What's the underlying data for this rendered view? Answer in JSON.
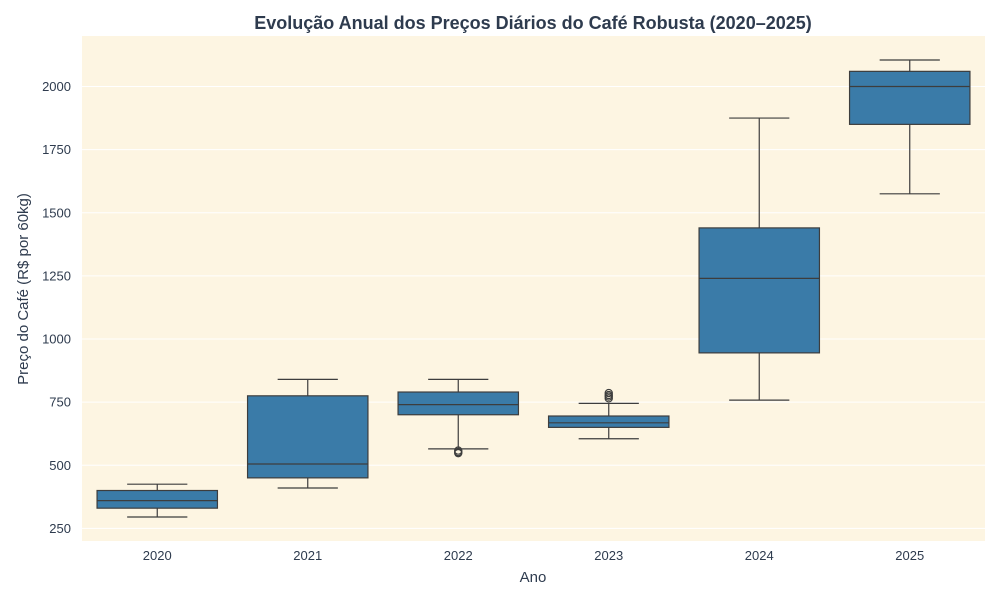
{
  "chart_data": {
    "type": "box",
    "title": "Evolução Anual dos Preços Diários do Café Robusta (2020–2025)",
    "xlabel": "Ano",
    "ylabel": "Preço do Café (R$ por 60kg)",
    "categories": [
      "2020",
      "2021",
      "2022",
      "2023",
      "2024",
      "2025"
    ],
    "ylim": [
      200,
      2200
    ],
    "yticks": [
      250,
      500,
      750,
      1000,
      1250,
      1500,
      1750,
      2000
    ],
    "grid": "horizontal",
    "legend": "none",
    "colors": {
      "box": "#3a7ba8",
      "line": "#3d3d3d",
      "background": "#fdf5e2",
      "grid": "#ffffff"
    },
    "boxes": [
      {
        "year": "2020",
        "whisker_low": 295,
        "q1": 330,
        "median": 360,
        "q3": 400,
        "whisker_high": 425,
        "outliers": []
      },
      {
        "year": "2021",
        "whisker_low": 410,
        "q1": 450,
        "median": 505,
        "q3": 775,
        "whisker_high": 840,
        "outliers": []
      },
      {
        "year": "2022",
        "whisker_low": 565,
        "q1": 700,
        "median": 740,
        "q3": 790,
        "whisker_high": 840,
        "outliers": [
          548,
          552,
          558
        ]
      },
      {
        "year": "2023",
        "whisker_low": 605,
        "q1": 650,
        "median": 668,
        "q3": 695,
        "whisker_high": 745,
        "outliers": [
          765,
          772,
          778,
          786
        ]
      },
      {
        "year": "2024",
        "whisker_low": 758,
        "q1": 945,
        "median": 1240,
        "q3": 1440,
        "whisker_high": 1875,
        "outliers": []
      },
      {
        "year": "2025",
        "whisker_low": 1575,
        "q1": 1850,
        "median": 2000,
        "q3": 2060,
        "whisker_high": 2105,
        "outliers": []
      }
    ]
  }
}
